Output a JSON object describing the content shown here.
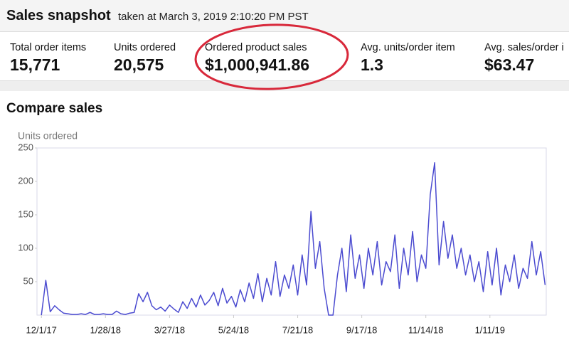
{
  "header": {
    "title": "Sales snapshot",
    "subtitle": "taken at March 3, 2019 2:10:20 PM PST"
  },
  "metrics": [
    {
      "label": "Total order items",
      "value": "15,771"
    },
    {
      "label": "Units ordered",
      "value": "20,575"
    },
    {
      "label": "Ordered product sales",
      "value": "$1,000,941.86"
    },
    {
      "label": "Avg. units/order item",
      "value": "1.3"
    },
    {
      "label": "Avg. sales/order i",
      "value": "$63.47"
    }
  ],
  "section_title": "Compare sales",
  "chart_data": {
    "type": "line",
    "ylabel": "Units ordered",
    "x": [
      0,
      4,
      8,
      12,
      16,
      20,
      24,
      28,
      32,
      36,
      40,
      44,
      48,
      52,
      56,
      60,
      64,
      68,
      72,
      76,
      80,
      84,
      88,
      92,
      96,
      100,
      104,
      108,
      112,
      116,
      120,
      124,
      128,
      132,
      136,
      140,
      144,
      148,
      152,
      156,
      160,
      164,
      168,
      172,
      176,
      180,
      184,
      188,
      192,
      196,
      200,
      204,
      208,
      212,
      216,
      220,
      224,
      228,
      232,
      236,
      240,
      244,
      248,
      252,
      256,
      260,
      264,
      268,
      272,
      276,
      280,
      284,
      288,
      292,
      296,
      300,
      304,
      308,
      312,
      316,
      320,
      324,
      328,
      332,
      336,
      340,
      344,
      348,
      352,
      356,
      360,
      364,
      368,
      372,
      376,
      380,
      384,
      388,
      392,
      396,
      400,
      404,
      408,
      412,
      416,
      420,
      424,
      428,
      432,
      436,
      440,
      444,
      448,
      452,
      456
    ],
    "series": [
      {
        "name": "Units ordered",
        "color": "#4b4bd0",
        "values": [
          0,
          52,
          5,
          14,
          8,
          3,
          2,
          1,
          1,
          2,
          1,
          4,
          1,
          1,
          2,
          1,
          1,
          6,
          2,
          1,
          3,
          4,
          32,
          20,
          34,
          14,
          8,
          12,
          6,
          15,
          9,
          4,
          20,
          10,
          25,
          12,
          30,
          15,
          22,
          34,
          14,
          40,
          18,
          28,
          12,
          38,
          20,
          48,
          25,
          62,
          20,
          55,
          30,
          80,
          28,
          60,
          40,
          75,
          30,
          90,
          45,
          155,
          70,
          110,
          40,
          0,
          0,
          60,
          100,
          35,
          120,
          55,
          90,
          40,
          100,
          60,
          110,
          45,
          80,
          65,
          120,
          40,
          100,
          60,
          125,
          50,
          90,
          70,
          180,
          228,
          75,
          140,
          85,
          120,
          70,
          100,
          60,
          90,
          50,
          80,
          35,
          95,
          45,
          100,
          30,
          75,
          50,
          90,
          40,
          70,
          55,
          110,
          60,
          95,
          45
        ]
      }
    ],
    "xlim": [
      -4,
      457
    ],
    "xticks": [
      {
        "value": 0,
        "label": "12/1/17"
      },
      {
        "value": 58,
        "label": "1/28/18"
      },
      {
        "value": 116,
        "label": "3/27/18"
      },
      {
        "value": 174,
        "label": "5/24/18"
      },
      {
        "value": 232,
        "label": "7/21/18"
      },
      {
        "value": 290,
        "label": "9/17/18"
      },
      {
        "value": 348,
        "label": "11/14/18"
      },
      {
        "value": 406,
        "label": "1/11/19"
      }
    ],
    "ylim": [
      0,
      250
    ],
    "yticks": [
      50,
      100,
      150,
      200,
      250
    ]
  }
}
